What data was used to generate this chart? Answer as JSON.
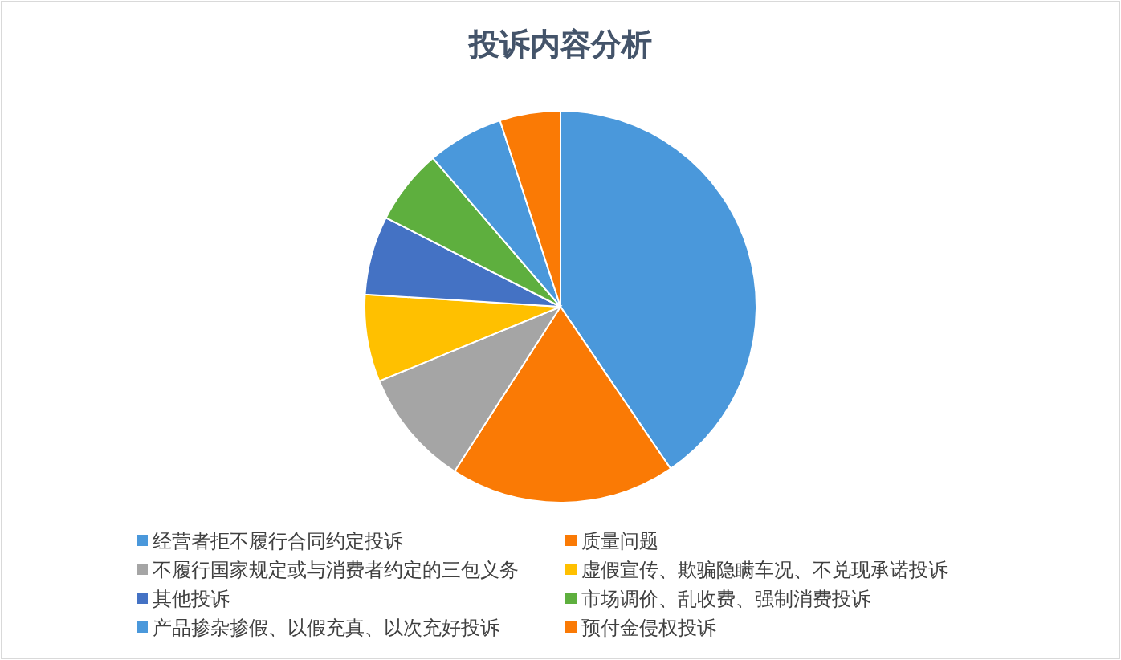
{
  "chart_data": {
    "type": "pie",
    "title": "投诉内容分析",
    "categories": [
      "经营者拒不履行合同约定投诉",
      "质量问题",
      "不履行国家规定或与消费者约定的三包义务",
      "虚假宣传、欺骗隐瞒车况、不兑现承诺投诉",
      "其他投诉",
      "市场调价、乱收费、强制消费投诉",
      "产品掺杂掺假、以假充真、以次充好投诉",
      "预付金侵权投诉"
    ],
    "values": [
      40.5,
      18.6,
      9.7,
      7.2,
      6.5,
      6.2,
      6.3,
      5.0
    ],
    "colors": [
      "#4a98db",
      "#fa7a05",
      "#a5a5a5",
      "#ffc000",
      "#4472c4",
      "#5eaf3e",
      "#4a98db",
      "#fa7a05"
    ],
    "legend": "bottom"
  }
}
